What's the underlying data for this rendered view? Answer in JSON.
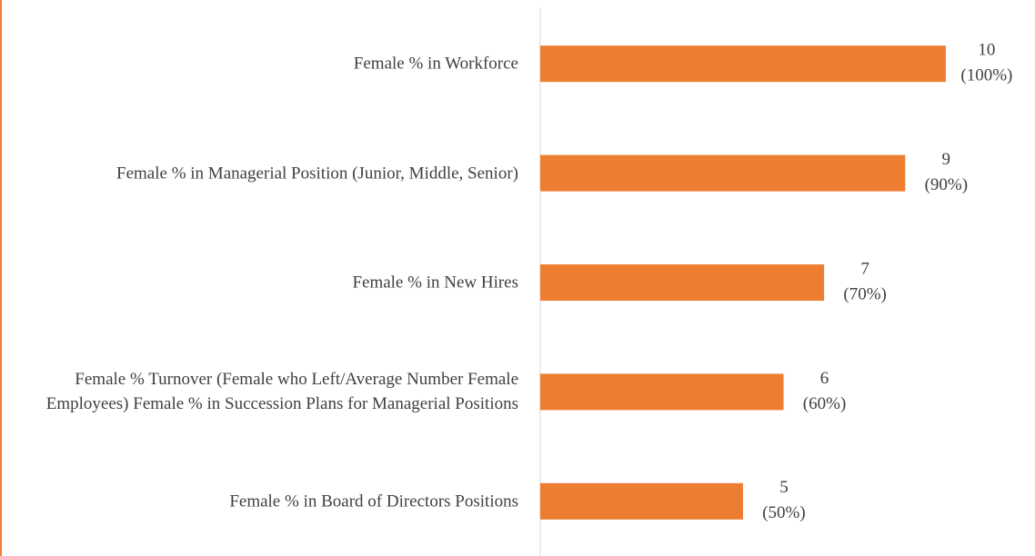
{
  "chart_data": {
    "type": "bar",
    "orientation": "horizontal",
    "categories": [
      "Female % in Workforce",
      "Female % in Managerial Position (Junior, Middle, Senior)",
      "Female % in New Hires",
      "Female % Turnover (Female who Left/Average Number Female Employees) Female % in Succession Plans for Managerial Positions",
      "Female % in Board of Directors Positions"
    ],
    "values": [
      10,
      9,
      7,
      6,
      5
    ],
    "value_labels": [
      [
        "10",
        "(100%)"
      ],
      [
        "9",
        "(90%)"
      ],
      [
        "7",
        "(70%)"
      ],
      [
        "6",
        "(60%)"
      ],
      [
        "5",
        "(50%)"
      ]
    ],
    "color": "#ed7d31",
    "xlim": [
      0,
      12.2
    ]
  }
}
